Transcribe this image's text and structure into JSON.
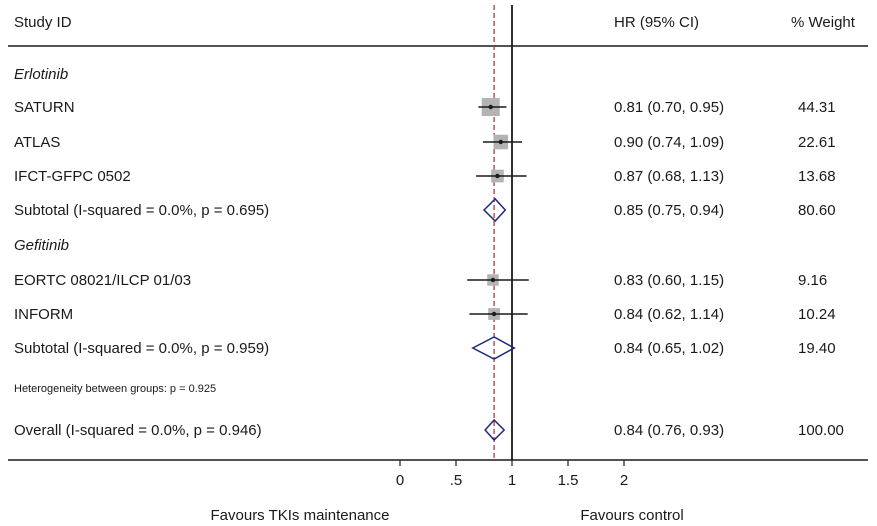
{
  "chart_data": {
    "type": "forest",
    "headers": {
      "study": "Study ID",
      "hr": "HR (95% CI)",
      "weight": "% Weight"
    },
    "rows": [
      {
        "kind": "group",
        "label": "Erlotinib"
      },
      {
        "kind": "study",
        "label": "SATURN",
        "hr": 0.81,
        "lo": 0.7,
        "hi": 0.95,
        "ci_text": "0.81 (0.70, 0.95)",
        "weight": "44.31",
        "w": 44.31
      },
      {
        "kind": "study",
        "label": "ATLAS",
        "hr": 0.9,
        "lo": 0.74,
        "hi": 1.09,
        "ci_text": "0.90 (0.74, 1.09)",
        "weight": "22.61",
        "w": 22.61
      },
      {
        "kind": "study",
        "label": "IFCT-GFPC 0502",
        "hr": 0.87,
        "lo": 0.68,
        "hi": 1.13,
        "ci_text": "0.87 (0.68, 1.13)",
        "weight": "13.68",
        "w": 13.68
      },
      {
        "kind": "subtotal",
        "label": "Subtotal  (I-squared = 0.0%, p = 0.695)",
        "hr": 0.85,
        "lo": 0.75,
        "hi": 0.94,
        "ci_text": "0.85 (0.75, 0.94)",
        "weight": "80.60"
      },
      {
        "kind": "group",
        "label": "Gefitinib"
      },
      {
        "kind": "study",
        "label": "EORTC 08021/ILCP 01/03",
        "hr": 0.83,
        "lo": 0.6,
        "hi": 1.15,
        "ci_text": "0.83 (0.60, 1.15)",
        "weight": "9.16",
        "w": 9.16
      },
      {
        "kind": "study",
        "label": "INFORM",
        "hr": 0.84,
        "lo": 0.62,
        "hi": 1.14,
        "ci_text": "0.84 (0.62, 1.14)",
        "weight": "10.24",
        "w": 10.24
      },
      {
        "kind": "subtotal",
        "label": "Subtotal  (I-squared = 0.0%, p = 0.959)",
        "hr": 0.84,
        "lo": 0.65,
        "hi": 1.02,
        "ci_text": "0.84 (0.65, 1.02)",
        "weight": "19.40"
      },
      {
        "kind": "note",
        "label": "Heterogeneity between groups: p = 0.925"
      },
      {
        "kind": "overall",
        "label": "Overall  (I-squared = 0.0%, p = 0.946)",
        "hr": 0.84,
        "lo": 0.76,
        "hi": 0.93,
        "ci_text": "0.84 (0.76, 0.93)",
        "weight": "100.00"
      }
    ],
    "x_ticks": [
      {
        "value": 0,
        "label": "0"
      },
      {
        "value": 0.5,
        "label": ".5"
      },
      {
        "value": 1,
        "label": "1"
      },
      {
        "value": 1.5,
        "label": "1.5"
      },
      {
        "value": 2,
        "label": "2"
      }
    ],
    "xlim": [
      0,
      2
    ],
    "null_line": 1,
    "overall_line": 0.84,
    "favours_left": "Favours TKIs maintenance",
    "favours_right": "Favours control",
    "colors": {
      "box": "#b3b3b3",
      "diamond": "#1f2a7a",
      "overall_line": "#a0303a",
      "ink": "#1a1a1a"
    }
  }
}
